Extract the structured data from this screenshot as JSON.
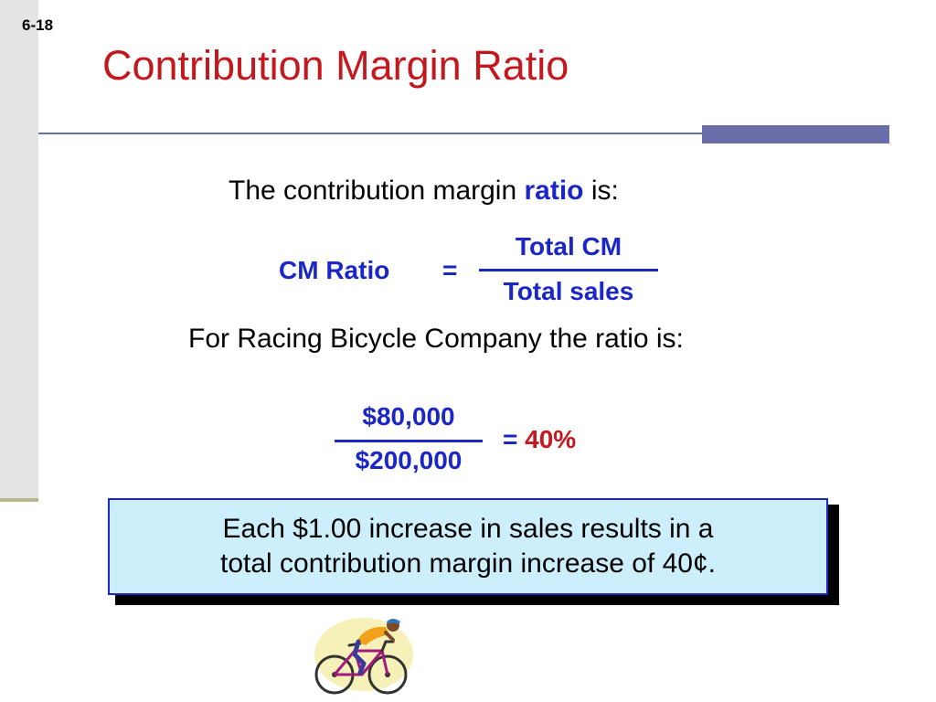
{
  "slide": {
    "number": "6-18",
    "title": "Contribution Margin Ratio"
  },
  "intro": {
    "text_before": "The contribution margin ",
    "highlight": "ratio",
    "text_after": " is:"
  },
  "formula": {
    "label": "CM Ratio",
    "equals": "=",
    "numerator": "Total CM",
    "denominator": "Total sales"
  },
  "company_line": "For Racing Bicycle Company the ratio is:",
  "calculation": {
    "numerator": "$80,000",
    "denominator": "$200,000",
    "equals": "= ",
    "result": "40%"
  },
  "callout": {
    "line1": "Each $1.00 increase in sales results in a",
    "line2": "total contribution margin increase of 40¢."
  },
  "colors": {
    "title": "#c4181f",
    "formula_blue": "#1b26c6",
    "accent_rule": "#6a6fab",
    "callout_fill": "#cdeefb"
  },
  "clipart": {
    "icon": "cyclist-icon"
  }
}
